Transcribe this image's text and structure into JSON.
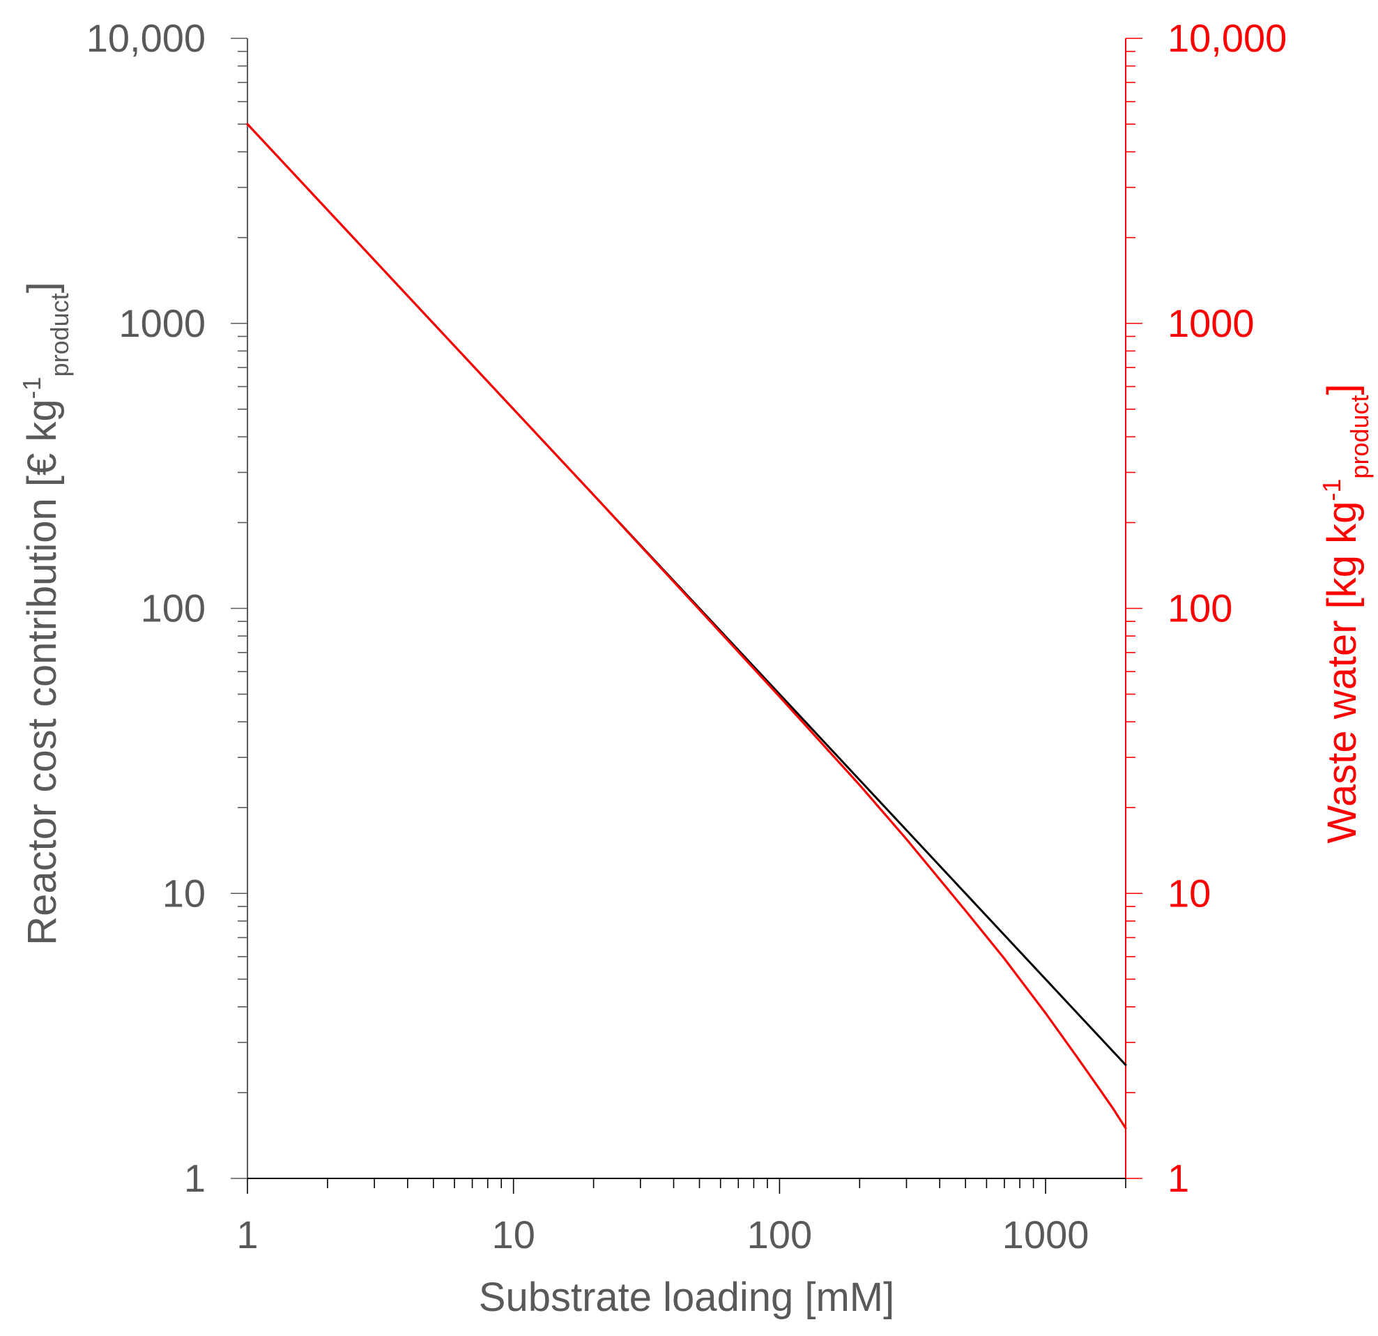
{
  "chart_data": {
    "type": "line",
    "xlabel": "Substrate loading [mM]",
    "xscale": "log",
    "xlim": [
      1,
      2000
    ],
    "x_ticks": [
      {
        "value": 1,
        "label": "1"
      },
      {
        "value": 10,
        "label": "10"
      },
      {
        "value": 100,
        "label": "100"
      },
      {
        "value": 1000,
        "label": "1000"
      }
    ],
    "y_left": {
      "label": {
        "main": "Reactor cost contribution [€ kg",
        "sup": "-1",
        "sub": "product",
        "close": "]"
      },
      "scale": "log",
      "lim": [
        1,
        10000
      ],
      "color": "#595959",
      "ticks": [
        {
          "value": 1,
          "label": "1"
        },
        {
          "value": 10,
          "label": "10"
        },
        {
          "value": 100,
          "label": "100"
        },
        {
          "value": 1000,
          "label": "1000"
        },
        {
          "value": 10000,
          "label": "10,000"
        }
      ]
    },
    "y_right": {
      "label": {
        "main": "Waste water [kg kg",
        "sup": "-1",
        "sub": "product",
        "close": "]"
      },
      "scale": "log",
      "lim": [
        1,
        10000
      ],
      "color": "#ff0000",
      "ticks": [
        {
          "value": 1,
          "label": "1"
        },
        {
          "value": 10,
          "label": "10"
        },
        {
          "value": 100,
          "label": "100"
        },
        {
          "value": 1000,
          "label": "1000"
        },
        {
          "value": 10000,
          "label": "10,000"
        }
      ]
    },
    "series": [
      {
        "axis": "left",
        "color": "#000000",
        "x": [
          1,
          2,
          5,
          10,
          20,
          50,
          100,
          200,
          500,
          1000,
          2000
        ],
        "y": [
          5000,
          2500,
          1000,
          500,
          250,
          100,
          50,
          25,
          10,
          5,
          2.5
        ]
      },
      {
        "axis": "right",
        "color": "#ff0000",
        "x": [
          1,
          2,
          5,
          10,
          20,
          50,
          100,
          200,
          300,
          500,
          700,
          1000,
          1300,
          1600,
          1800,
          2000
        ],
        "y": [
          5000,
          2500,
          1000,
          500,
          250,
          99,
          49,
          24,
          15.5,
          8.7,
          5.9,
          3.8,
          2.7,
          2.05,
          1.75,
          1.5
        ]
      }
    ]
  }
}
